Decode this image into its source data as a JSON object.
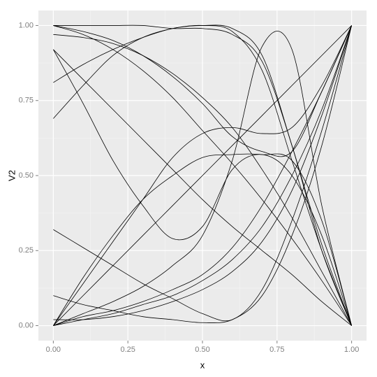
{
  "chart_data": {
    "type": "line",
    "x_label": "x",
    "y_label": "V2",
    "x": [
      0,
      0.1,
      0.2,
      0.3,
      0.4,
      0.5,
      0.6,
      0.7,
      0.8,
      0.9,
      1
    ],
    "series": [
      {
        "color": "#000000",
        "values": [
          1,
          1,
          1,
          1,
          0.99,
          0.99,
          0.97,
          0.88,
          0.6,
          0.25,
          0
        ]
      },
      {
        "color": "#000000",
        "values": [
          0,
          0.04,
          0.08,
          0.13,
          0.2,
          0.3,
          0.55,
          0.93,
          0.92,
          0.4,
          0
        ]
      },
      {
        "color": "#000000",
        "values": [
          0.92,
          0.74,
          0.55,
          0.4,
          0.29,
          0.33,
          0.52,
          0.57,
          0.5,
          0.3,
          0
        ]
      },
      {
        "color": "#000000",
        "values": [
          0,
          0.1,
          0.2,
          0.3,
          0.4,
          0.5,
          0.6,
          0.7,
          0.8,
          0.9,
          1
        ]
      },
      {
        "color": "#000000",
        "values": [
          0,
          0.02,
          0.04,
          0.07,
          0.1,
          0.15,
          0.22,
          0.33,
          0.5,
          0.72,
          1
        ]
      },
      {
        "color": "#000000",
        "values": [
          0.1,
          0.07,
          0.05,
          0.03,
          0.02,
          0.01,
          0.02,
          0.1,
          0.3,
          0.6,
          1
        ]
      },
      {
        "color": "#000000",
        "values": [
          0.32,
          0.26,
          0.2,
          0.14,
          0.09,
          0.04,
          0.02,
          0.12,
          0.35,
          0.65,
          1
        ]
      },
      {
        "color": "#000000",
        "values": [
          0.69,
          0.8,
          0.9,
          0.96,
          0.99,
          1,
          0.98,
          0.85,
          0.55,
          0.25,
          0
        ]
      },
      {
        "color": "#000000",
        "values": [
          0.81,
          0.87,
          0.92,
          0.96,
          0.99,
          1,
          0.99,
          0.9,
          0.6,
          0.27,
          0
        ]
      },
      {
        "color": "#000000",
        "values": [
          0,
          0.14,
          0.28,
          0.42,
          0.56,
          0.64,
          0.66,
          0.64,
          0.66,
          0.8,
          1
        ]
      },
      {
        "color": "#000000",
        "values": [
          0.97,
          0.96,
          0.94,
          0.9,
          0.84,
          0.76,
          0.66,
          0.52,
          0.36,
          0.18,
          0
        ]
      },
      {
        "color": "#000000",
        "values": [
          1,
          0.97,
          0.92,
          0.85,
          0.76,
          0.65,
          0.54,
          0.42,
          0.29,
          0.15,
          0
        ]
      },
      {
        "color": "#000000",
        "values": [
          0.92,
          0.82,
          0.72,
          0.62,
          0.52,
          0.42,
          0.33,
          0.25,
          0.17,
          0.08,
          0
        ]
      },
      {
        "color": "#000000",
        "values": [
          0.02,
          0.02,
          0.03,
          0.05,
          0.08,
          0.12,
          0.18,
          0.28,
          0.45,
          0.7,
          1
        ]
      },
      {
        "color": "#000000",
        "values": [
          0,
          0.03,
          0.05,
          0.08,
          0.12,
          0.17,
          0.26,
          0.4,
          0.58,
          0.78,
          1
        ]
      },
      {
        "color": "#000000",
        "values": [
          1,
          0.98,
          0.95,
          0.9,
          0.83,
          0.74,
          0.63,
          0.58,
          0.58,
          0.78,
          1
        ]
      },
      {
        "color": "#000000",
        "values": [
          0,
          0.16,
          0.3,
          0.42,
          0.5,
          0.56,
          0.57,
          0.57,
          0.55,
          0.35,
          0
        ]
      }
    ],
    "xlim": [
      -0.05,
      1.05
    ],
    "ylim": [
      -0.05,
      1.05
    ],
    "xticks": [
      {
        "value": 0,
        "label": "0.00"
      },
      {
        "value": 0.25,
        "label": "0.25"
      },
      {
        "value": 0.5,
        "label": "0.50"
      },
      {
        "value": 0.75,
        "label": "0.75"
      },
      {
        "value": 1,
        "label": "1.00"
      }
    ],
    "yticks": [
      {
        "value": 0,
        "label": "0.00"
      },
      {
        "value": 0.25,
        "label": "0.25"
      },
      {
        "value": 0.5,
        "label": "0.50"
      },
      {
        "value": 0.75,
        "label": "0.75"
      },
      {
        "value": 1,
        "label": "1.00"
      }
    ],
    "grid": true
  }
}
